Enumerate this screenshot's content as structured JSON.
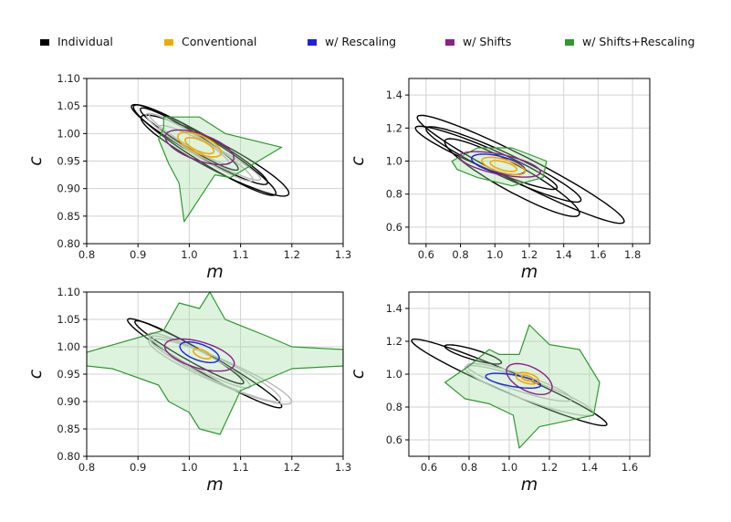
{
  "legend": [
    {
      "label": "Individual",
      "color": "#000000"
    },
    {
      "label": "Conventional",
      "color": "#f5a800"
    },
    {
      "label": "w/ Rescaling",
      "color": "#1f1fe6"
    },
    {
      "label": "w/ Shifts",
      "color": "#8e1e8e"
    },
    {
      "label": "w/ Shifts+Rescaling",
      "color": "#2e9a2e"
    }
  ],
  "chart_data": [
    {
      "type": "contour",
      "panel": "top-left",
      "xlabel": "m",
      "ylabel": "c",
      "xlim": [
        0.8,
        1.3
      ],
      "ylim": [
        0.8,
        1.1
      ],
      "xticks": [
        "0.8",
        "0.9",
        "1.0",
        "1.1",
        "1.2",
        "1.3"
      ],
      "yticks": [
        "0.80",
        "0.85",
        "0.90",
        "0.95",
        "1.00",
        "1.05",
        "1.10"
      ],
      "grid": true,
      "series": [
        {
          "name": "Individual",
          "contours": [
            {
              "cx": 1.03,
              "cy": 0.97,
              "rx": 0.16,
              "ry": 0.022,
              "angle": -30
            },
            {
              "cx": 1.02,
              "cy": 0.98,
              "rx": 0.15,
              "ry": 0.02,
              "angle": -28
            },
            {
              "cx": 1.05,
              "cy": 0.96,
              "rx": 0.16,
              "ry": 0.025,
              "angle": -26
            },
            {
              "cx": 1.0,
              "cy": 0.99,
              "rx": 0.11,
              "ry": 0.015,
              "angle": -30
            }
          ]
        },
        {
          "name": "Individual (faint)",
          "contours": [
            {
              "cx": 1.02,
              "cy": 0.975,
              "rx": 0.12,
              "ry": 0.016,
              "angle": -30
            },
            {
              "cx": 1.0,
              "cy": 0.99,
              "rx": 0.09,
              "ry": 0.012,
              "angle": -30
            },
            {
              "cx": 1.04,
              "cy": 0.965,
              "rx": 0.11,
              "ry": 0.014,
              "angle": -26
            }
          ]
        },
        {
          "name": "w/ Shifts+Rescaling",
          "polygon": [
            [
              0.95,
              1.03
            ],
            [
              1.02,
              1.03
            ],
            [
              1.07,
              1.0
            ],
            [
              1.18,
              0.975
            ],
            [
              1.08,
              0.92
            ],
            [
              1.05,
              0.925
            ],
            [
              0.99,
              0.84
            ],
            [
              0.98,
              0.91
            ],
            [
              0.96,
              0.945
            ],
            [
              0.94,
              0.99
            ],
            [
              0.95,
              1.01
            ]
          ]
        },
        {
          "name": "w/ Shifts",
          "contours": [
            {
              "cx": 1.02,
              "cy": 0.975,
              "rx": 0.07,
              "ry": 0.024,
              "angle": -18
            }
          ]
        },
        {
          "name": "Conventional",
          "contours": [
            {
              "cx": 1.02,
              "cy": 0.98,
              "rx": 0.045,
              "ry": 0.016,
              "angle": -22
            },
            {
              "cx": 1.02,
              "cy": 0.978,
              "rx": 0.03,
              "ry": 0.01,
              "angle": -22
            }
          ]
        }
      ]
    },
    {
      "type": "contour",
      "panel": "top-right",
      "xlabel": "m",
      "ylabel": "c",
      "xlim": [
        0.5,
        1.9
      ],
      "ylim": [
        0.5,
        1.5
      ],
      "xticks": [
        "0.6",
        "0.8",
        "1.0",
        "1.2",
        "1.4",
        "1.6",
        "1.8"
      ],
      "yticks": [
        "0.6",
        "0.8",
        "1.0",
        "1.2",
        "1.4"
      ],
      "grid": true,
      "series": [
        {
          "name": "Individual",
          "contours": [
            {
              "cx": 1.15,
              "cy": 0.95,
              "rx": 0.68,
              "ry": 0.08,
              "angle": -28
            },
            {
              "cx": 1.05,
              "cy": 0.98,
              "rx": 0.5,
              "ry": 0.07,
              "angle": -26
            },
            {
              "cx": 0.95,
              "cy": 1.02,
              "rx": 0.45,
              "ry": 0.06,
              "angle": -24
            },
            {
              "cx": 1.1,
              "cy": 0.9,
              "rx": 0.45,
              "ry": 0.08,
              "angle": -30
            }
          ]
        },
        {
          "name": "w/ Shifts+Rescaling",
          "polygon": [
            [
              0.75,
              1.0
            ],
            [
              0.9,
              1.08
            ],
            [
              1.1,
              1.08
            ],
            [
              1.3,
              1.0
            ],
            [
              1.28,
              0.9
            ],
            [
              1.1,
              0.85
            ],
            [
              0.9,
              0.9
            ],
            [
              0.78,
              0.95
            ]
          ]
        },
        {
          "name": "w/ Shifts",
          "contours": [
            {
              "cx": 1.03,
              "cy": 0.98,
              "rx": 0.24,
              "ry": 0.06,
              "angle": -12
            }
          ]
        },
        {
          "name": "w/ Rescaling",
          "contours": [
            {
              "cx": 1.02,
              "cy": 0.98,
              "rx": 0.16,
              "ry": 0.05,
              "angle": -14
            }
          ]
        },
        {
          "name": "Conventional",
          "contours": [
            {
              "cx": 1.05,
              "cy": 0.97,
              "rx": 0.13,
              "ry": 0.04,
              "angle": -16
            },
            {
              "cx": 1.05,
              "cy": 0.97,
              "rx": 0.08,
              "ry": 0.025,
              "angle": -16
            }
          ]
        }
      ]
    },
    {
      "type": "contour",
      "panel": "bottom-left",
      "xlabel": "m",
      "ylabel": "c",
      "xlim": [
        0.8,
        1.3
      ],
      "ylim": [
        0.8,
        1.1
      ],
      "xticks": [
        "0.8",
        "0.9",
        "1.0",
        "1.1",
        "1.2",
        "1.3"
      ],
      "yticks": [
        "0.80",
        "0.85",
        "0.90",
        "0.95",
        "1.00",
        "1.05",
        "1.10"
      ],
      "grid": true,
      "series": [
        {
          "name": "Individual",
          "contours": [
            {
              "cx": 1.03,
              "cy": 0.97,
              "rx": 0.17,
              "ry": 0.018,
              "angle": -28
            },
            {
              "cx": 1.0,
              "cy": 0.99,
              "rx": 0.12,
              "ry": 0.014,
              "angle": -28
            }
          ]
        },
        {
          "name": "Individual (faint)",
          "contours": [
            {
              "cx": 1.05,
              "cy": 0.96,
              "rx": 0.14,
              "ry": 0.02,
              "angle": -24
            },
            {
              "cx": 1.02,
              "cy": 0.975,
              "rx": 0.11,
              "ry": 0.016,
              "angle": -26
            },
            {
              "cx": 1.06,
              "cy": 0.955,
              "rx": 0.15,
              "ry": 0.022,
              "angle": -22
            }
          ]
        },
        {
          "name": "w/ Shifts+Rescaling",
          "polygon": [
            [
              0.8,
              0.99
            ],
            [
              0.95,
              1.03
            ],
            [
              0.98,
              1.08
            ],
            [
              1.02,
              1.07
            ],
            [
              1.04,
              1.1
            ],
            [
              1.07,
              1.05
            ],
            [
              1.15,
              1.02
            ],
            [
              1.2,
              1.0
            ],
            [
              1.3,
              0.995
            ],
            [
              1.3,
              0.965
            ],
            [
              1.2,
              0.96
            ],
            [
              1.1,
              0.92
            ],
            [
              1.06,
              0.84
            ],
            [
              1.02,
              0.85
            ],
            [
              1.0,
              0.88
            ],
            [
              0.96,
              0.9
            ],
            [
              0.94,
              0.93
            ],
            [
              0.85,
              0.96
            ],
            [
              0.8,
              0.965
            ]
          ]
        },
        {
          "name": "w/ Shifts",
          "contours": [
            {
              "cx": 1.02,
              "cy": 0.985,
              "rx": 0.07,
              "ry": 0.024,
              "angle": -15
            }
          ]
        },
        {
          "name": "w/ Rescaling",
          "contours": [
            {
              "cx": 1.02,
              "cy": 0.99,
              "rx": 0.04,
              "ry": 0.015,
              "angle": -18
            }
          ]
        },
        {
          "name": "Conventional",
          "contours": [
            {
              "cx": 1.025,
              "cy": 0.987,
              "rx": 0.018,
              "ry": 0.007,
              "angle": -20
            }
          ]
        }
      ]
    },
    {
      "type": "contour",
      "panel": "bottom-right",
      "xlabel": "m",
      "ylabel": "c",
      "xlim": [
        0.5,
        1.7
      ],
      "ylim": [
        0.5,
        1.5
      ],
      "xticks": [
        "0.6",
        "0.8",
        "1.0",
        "1.2",
        "1.4",
        "1.6"
      ],
      "yticks": [
        "0.6",
        "0.8",
        "1.0",
        "1.2",
        "1.4"
      ],
      "grid": true,
      "series": [
        {
          "name": "Individual",
          "contours": [
            {
              "cx": 1.0,
              "cy": 0.95,
              "rx": 0.55,
              "ry": 0.06,
              "angle": -28
            },
            {
              "cx": 0.82,
              "cy": 1.12,
              "rx": 0.15,
              "ry": 0.03,
              "angle": -20
            }
          ]
        },
        {
          "name": "Individual (faint)",
          "contours": [
            {
              "cx": 1.1,
              "cy": 0.9,
              "rx": 0.35,
              "ry": 0.06,
              "angle": -24
            },
            {
              "cx": 1.05,
              "cy": 0.95,
              "rx": 0.28,
              "ry": 0.05,
              "angle": -22
            }
          ]
        },
        {
          "name": "w/ Shifts+Rescaling",
          "polygon": [
            [
              0.68,
              0.95
            ],
            [
              0.8,
              1.05
            ],
            [
              0.9,
              1.15
            ],
            [
              0.95,
              1.12
            ],
            [
              1.05,
              1.12
            ],
            [
              1.1,
              1.3
            ],
            [
              1.2,
              1.18
            ],
            [
              1.35,
              1.15
            ],
            [
              1.45,
              0.95
            ],
            [
              1.42,
              0.75
            ],
            [
              1.15,
              0.68
            ],
            [
              1.05,
              0.55
            ],
            [
              1.02,
              0.75
            ],
            [
              0.9,
              0.82
            ],
            [
              0.78,
              0.85
            ]
          ]
        },
        {
          "name": "w/ Shifts",
          "contours": [
            {
              "cx": 1.1,
              "cy": 0.97,
              "rx": 0.13,
              "ry": 0.07,
              "angle": -35
            }
          ]
        },
        {
          "name": "w/ Rescaling",
          "contours": [
            {
              "cx": 1.02,
              "cy": 0.96,
              "rx": 0.14,
              "ry": 0.035,
              "angle": -12
            }
          ]
        },
        {
          "name": "Conventional",
          "contours": [
            {
              "cx": 1.09,
              "cy": 0.975,
              "rx": 0.06,
              "ry": 0.03,
              "angle": -20
            },
            {
              "cx": 1.09,
              "cy": 0.975,
              "rx": 0.03,
              "ry": 0.015,
              "angle": -20
            }
          ]
        }
      ]
    }
  ]
}
